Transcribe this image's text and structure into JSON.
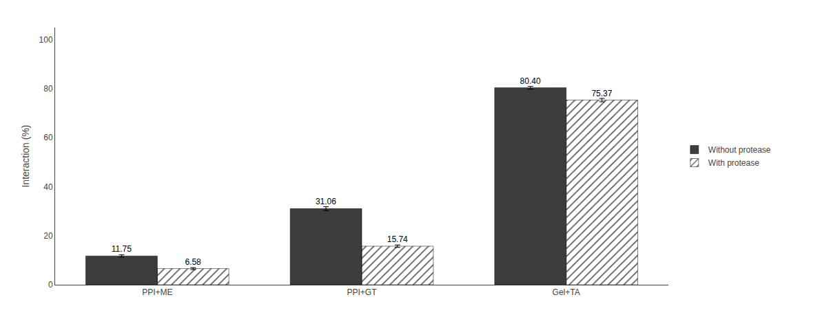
{
  "chart_data": {
    "type": "bar",
    "categories": [
      "PPI+ME",
      "PPI+GT",
      "Gel+TA"
    ],
    "series": [
      {
        "name": "Without protease",
        "color": "#3d3d3d",
        "values": [
          11.75,
          31.06,
          80.4
        ],
        "value_labels": [
          "11.75",
          "31.06",
          "80.40"
        ],
        "errors": [
          0.5,
          0.8,
          0.6
        ]
      },
      {
        "name": "With protease",
        "color": "#b0b0b0",
        "values": [
          6.58,
          15.74,
          75.37
        ],
        "value_labels": [
          "6.58",
          "15.74",
          "75.37"
        ],
        "errors": [
          0.4,
          0.5,
          0.7
        ]
      }
    ],
    "y_label": "Interaction (%)",
    "ylim": [
      0,
      105
    ],
    "yticks": [
      0,
      20,
      40,
      60,
      80,
      100
    ],
    "grid": false,
    "legend": "right",
    "data_labels": true
  }
}
